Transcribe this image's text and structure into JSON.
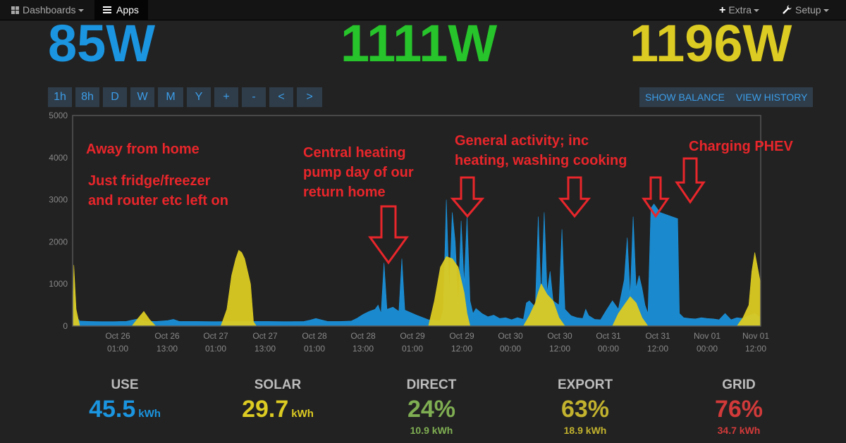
{
  "nav": {
    "dashboards": "Dashboards",
    "apps": "Apps",
    "extra": "Extra",
    "setup": "Setup"
  },
  "header": {
    "use_power": "85W",
    "solar_power": "1111W",
    "total_power": "1196W"
  },
  "toolbar": {
    "buttons": [
      "1h",
      "8h",
      "D",
      "W",
      "M",
      "Y",
      "+",
      "-",
      "<",
      ">"
    ],
    "show_balance": "SHOW BALANCE",
    "view_history": "VIEW HISTORY"
  },
  "colors": {
    "use": "#1b95e0",
    "solar": "#dccb22",
    "direct": "#7fae52",
    "export": "#c2b22e",
    "grid": "#d23a3a",
    "annotation": "#e8262b"
  },
  "chart_data": {
    "type": "area",
    "ylim": [
      0,
      5000
    ],
    "y_ticks": [
      0,
      1000,
      2000,
      3000,
      4000,
      5000
    ],
    "x_ticks": [
      {
        "date": "Oct 26",
        "time": "01:00"
      },
      {
        "date": "Oct 26",
        "time": "13:00"
      },
      {
        "date": "Oct 27",
        "time": "01:00"
      },
      {
        "date": "Oct 27",
        "time": "13:00"
      },
      {
        "date": "Oct 28",
        "time": "01:00"
      },
      {
        "date": "Oct 28",
        "time": "13:00"
      },
      {
        "date": "Oct 29",
        "time": "01:00"
      },
      {
        "date": "Oct 29",
        "time": "12:00"
      },
      {
        "date": "Oct 30",
        "time": "00:00"
      },
      {
        "date": "Oct 30",
        "time": "12:00"
      },
      {
        "date": "Oct 31",
        "time": "00:00"
      },
      {
        "date": "Oct 31",
        "time": "12:00"
      },
      {
        "date": "Nov 01",
        "time": "00:00"
      },
      {
        "date": "Nov 01",
        "time": "12:00"
      }
    ],
    "series": [
      {
        "color": "#1b95e0",
        "points": [
          [
            0,
            100
          ],
          [
            0.2,
            1100
          ],
          [
            0.5,
            250
          ],
          [
            1.2,
            120
          ],
          [
            3,
            110
          ],
          [
            5,
            105
          ],
          [
            7,
            105
          ],
          [
            8,
            110
          ],
          [
            9,
            110
          ],
          [
            10,
            140
          ],
          [
            11,
            170
          ],
          [
            12,
            120
          ],
          [
            14,
            110
          ],
          [
            16,
            130
          ],
          [
            17,
            160
          ],
          [
            18,
            110
          ],
          [
            21,
            110
          ],
          [
            24,
            105
          ],
          [
            27,
            110
          ],
          [
            30,
            110
          ],
          [
            33,
            110
          ],
          [
            36,
            105
          ],
          [
            39,
            110
          ],
          [
            40,
            140
          ],
          [
            41,
            180
          ],
          [
            43,
            110
          ],
          [
            45,
            110
          ],
          [
            47,
            120
          ],
          [
            48,
            190
          ],
          [
            49,
            280
          ],
          [
            50,
            350
          ],
          [
            51,
            400
          ],
          [
            51.5,
            500
          ],
          [
            52,
            300
          ],
          [
            52.5,
            1500
          ],
          [
            53,
            400
          ],
          [
            54,
            450
          ],
          [
            55,
            350
          ],
          [
            55.5,
            1600
          ],
          [
            56,
            380
          ],
          [
            57,
            320
          ],
          [
            58,
            260
          ],
          [
            60,
            150
          ],
          [
            62,
            120
          ],
          [
            62.5,
            400
          ],
          [
            63,
            3000
          ],
          [
            63.5,
            800
          ],
          [
            64,
            2700
          ],
          [
            64.5,
            2000
          ],
          [
            65,
            500
          ],
          [
            65.5,
            2500
          ],
          [
            66,
            1000
          ],
          [
            66.5,
            2600
          ],
          [
            67,
            600
          ],
          [
            67.5,
            300
          ],
          [
            68,
            420
          ],
          [
            69,
            300
          ],
          [
            70,
            220
          ],
          [
            71,
            260
          ],
          [
            72,
            180
          ],
          [
            73,
            200
          ],
          [
            74,
            150
          ],
          [
            75,
            200
          ],
          [
            76,
            160
          ],
          [
            76.5,
            550
          ],
          [
            77,
            600
          ],
          [
            78,
            450
          ],
          [
            78.5,
            2600
          ],
          [
            79,
            600
          ],
          [
            79.5,
            2700
          ],
          [
            80,
            800
          ],
          [
            80.5,
            1300
          ],
          [
            81,
            600
          ],
          [
            82,
            500
          ],
          [
            82.5,
            2300
          ],
          [
            83,
            400
          ],
          [
            84,
            250
          ],
          [
            85,
            200
          ],
          [
            86,
            180
          ],
          [
            86.5,
            400
          ],
          [
            87,
            250
          ],
          [
            88,
            160
          ],
          [
            89,
            150
          ],
          [
            90,
            380
          ],
          [
            91,
            600
          ],
          [
            92,
            400
          ],
          [
            93,
            1100
          ],
          [
            93.5,
            2100
          ],
          [
            94,
            700
          ],
          [
            94.5,
            2600
          ],
          [
            95,
            900
          ],
          [
            95.5,
            1200
          ],
          [
            96,
            900
          ],
          [
            96.5,
            500
          ],
          [
            97,
            300
          ],
          [
            97.5,
            2800
          ],
          [
            98,
            2900
          ],
          [
            99,
            2700
          ],
          [
            100,
            2650
          ],
          [
            101,
            2600
          ],
          [
            102,
            2550
          ],
          [
            102.3,
            300
          ],
          [
            103,
            200
          ],
          [
            104,
            180
          ],
          [
            105,
            170
          ],
          [
            106,
            200
          ],
          [
            107,
            180
          ],
          [
            108,
            170
          ],
          [
            109,
            150
          ],
          [
            110,
            300
          ],
          [
            111,
            150
          ],
          [
            112,
            200
          ],
          [
            113,
            180
          ],
          [
            114,
            250
          ],
          [
            115,
            300
          ],
          [
            116,
            200
          ]
        ],
        "name": ""
      },
      {
        "color": "#dccb22",
        "points": [
          [
            0,
            0
          ],
          [
            0.2,
            1450
          ],
          [
            0.6,
            400
          ],
          [
            1.2,
            0
          ],
          [
            10,
            0
          ],
          [
            11,
            180
          ],
          [
            12,
            350
          ],
          [
            13,
            150
          ],
          [
            14,
            0
          ],
          [
            25,
            0
          ],
          [
            26,
            400
          ],
          [
            26.8,
            1200
          ],
          [
            27.5,
            1600
          ],
          [
            28,
            1800
          ],
          [
            28.5,
            1750
          ],
          [
            29,
            1600
          ],
          [
            30,
            1000
          ],
          [
            30.5,
            100
          ],
          [
            31,
            0
          ],
          [
            60,
            0
          ],
          [
            61,
            600
          ],
          [
            62,
            1400
          ],
          [
            63,
            1650
          ],
          [
            64,
            1600
          ],
          [
            65,
            1400
          ],
          [
            66,
            800
          ],
          [
            66.5,
            300
          ],
          [
            67,
            0
          ],
          [
            76,
            0
          ],
          [
            77,
            250
          ],
          [
            78,
            550
          ],
          [
            78.5,
            800
          ],
          [
            79,
            1000
          ],
          [
            80,
            750
          ],
          [
            81,
            600
          ],
          [
            82,
            200
          ],
          [
            83,
            0
          ],
          [
            91,
            0
          ],
          [
            92,
            300
          ],
          [
            93,
            500
          ],
          [
            94,
            700
          ],
          [
            95,
            550
          ],
          [
            96,
            200
          ],
          [
            97,
            0
          ],
          [
            112,
            0
          ],
          [
            113,
            200
          ],
          [
            114,
            500
          ],
          [
            114.5,
            1300
          ],
          [
            115,
            1750
          ],
          [
            116,
            1000
          ]
        ],
        "name": ""
      }
    ],
    "annotations": [
      {
        "lines": [
          "Away from home"
        ]
      },
      {
        "lines": [
          "Just fridge/freezer",
          "and router etc left on"
        ]
      },
      {
        "lines": [
          "Central heating",
          "pump day of our",
          "return home"
        ]
      },
      {
        "lines": [
          "General activity; inc",
          "heating, washing cooking"
        ]
      },
      {
        "lines": [
          "Charging PHEV"
        ]
      }
    ]
  },
  "stats": {
    "use": {
      "label": "USE",
      "value": "45.5",
      "unit": "kWh"
    },
    "solar": {
      "label": "SOLAR",
      "value": "29.7",
      "unit": "kWh"
    },
    "direct": {
      "label": "DIRECT",
      "value": "24%",
      "sub": "10.9 kWh"
    },
    "export": {
      "label": "EXPORT",
      "value": "63%",
      "sub": "18.9 kWh"
    },
    "grid": {
      "label": "GRID",
      "value": "76%",
      "sub": "34.7 kWh"
    }
  }
}
